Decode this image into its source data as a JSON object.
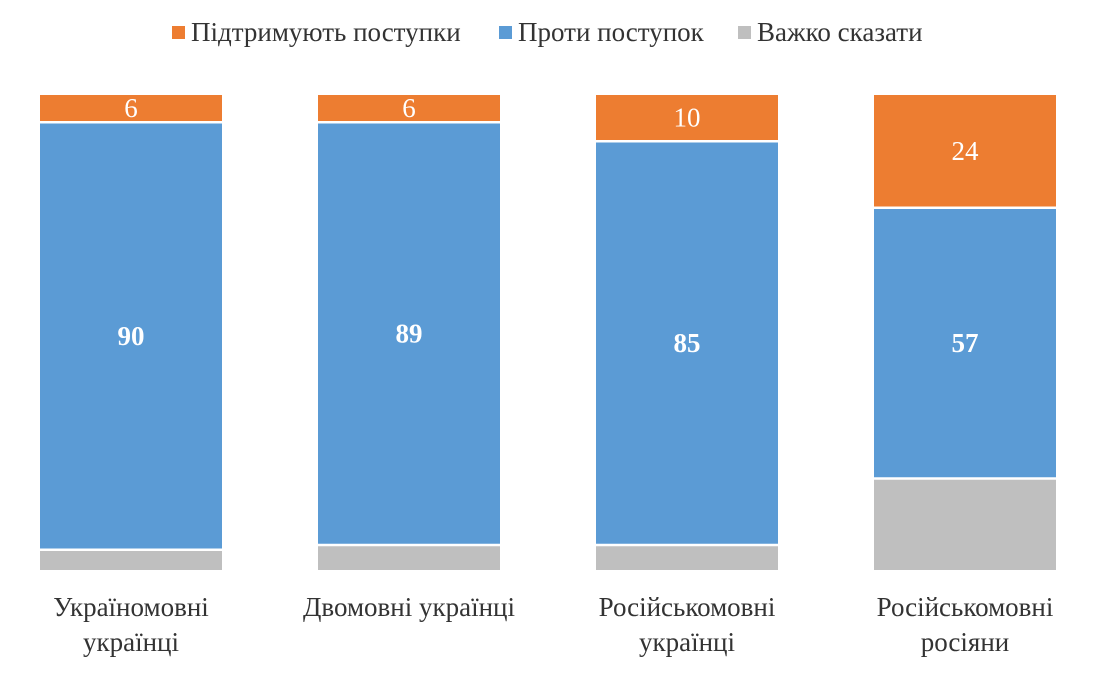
{
  "chart_data": {
    "type": "bar",
    "stacked": true,
    "categories": [
      [
        "Україномовні",
        "українці"
      ],
      [
        "Двомовні українці"
      ],
      [
        "Російськомовні",
        "українці"
      ],
      [
        "Російськомовні",
        "росіяни"
      ]
    ],
    "series": [
      {
        "name": "Підтримують поступки",
        "color": "#ED7D31",
        "values": [
          6,
          6,
          10,
          24
        ],
        "label_bold": false,
        "label_color": "#FFFFFF"
      },
      {
        "name": "Проти поступок",
        "color": "#5B9BD5",
        "values": [
          90,
          89,
          85,
          57
        ],
        "label_bold": true,
        "label_color": "#FFFFFF"
      },
      {
        "name": "Важко сказати",
        "color": "#BFBFBF",
        "values": [
          4,
          5,
          5,
          19
        ],
        "label_bold": false,
        "label_color": "#FFFFFF",
        "show_labels": false
      }
    ],
    "ylim": [
      0,
      100
    ],
    "legend_position": "top",
    "grid": false,
    "xlabel": "",
    "ylabel": ""
  }
}
